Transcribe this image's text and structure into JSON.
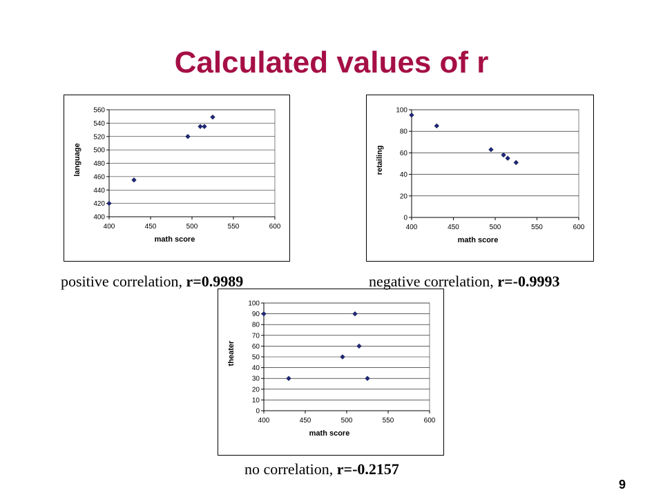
{
  "title": "Calculated values of r",
  "page_number": "9",
  "captions": [
    {
      "text": "positive correlation, ",
      "r": "r=0.9989"
    },
    {
      "text": "negative correlation, ",
      "r": "r=-0.9993"
    },
    {
      "text": "no correlation, ",
      "r": "r=-0.2157"
    }
  ],
  "colors": {
    "title": "#a50f45",
    "marker": "#1f2a80"
  },
  "chart_data": [
    {
      "type": "scatter",
      "xlabel": "math score",
      "ylabel": "language",
      "xlim": [
        400,
        600
      ],
      "ylim": [
        400,
        560
      ],
      "x_ticks": [
        "400",
        "450",
        "500",
        "550",
        "600"
      ],
      "y_ticks": [
        "400",
        "420",
        "440",
        "460",
        "480",
        "500",
        "520",
        "540",
        "560"
      ],
      "grid": "horizontal",
      "points": [
        {
          "x": 400,
          "y": 420
        },
        {
          "x": 430,
          "y": 455
        },
        {
          "x": 495,
          "y": 520
        },
        {
          "x": 510,
          "y": 535
        },
        {
          "x": 515,
          "y": 535
        },
        {
          "x": 525,
          "y": 549
        }
      ]
    },
    {
      "type": "scatter",
      "xlabel": "math score",
      "ylabel": "retailing",
      "xlim": [
        400,
        600
      ],
      "ylim": [
        0,
        100
      ],
      "x_ticks": [
        "400",
        "450",
        "500",
        "550",
        "600"
      ],
      "y_ticks": [
        "0",
        "20",
        "40",
        "60",
        "80",
        "100"
      ],
      "grid": "horizontal",
      "points": [
        {
          "x": 400,
          "y": 95
        },
        {
          "x": 430,
          "y": 85
        },
        {
          "x": 495,
          "y": 63
        },
        {
          "x": 510,
          "y": 58
        },
        {
          "x": 515,
          "y": 55
        },
        {
          "x": 525,
          "y": 51
        }
      ]
    },
    {
      "type": "scatter",
      "xlabel": "math score",
      "ylabel": "theater",
      "xlim": [
        400,
        600
      ],
      "ylim": [
        0,
        100
      ],
      "x_ticks": [
        "400",
        "450",
        "500",
        "550",
        "600"
      ],
      "y_ticks": [
        "0",
        "10",
        "20",
        "30",
        "40",
        "50",
        "60",
        "70",
        "80",
        "90",
        "100"
      ],
      "grid": "horizontal",
      "points": [
        {
          "x": 400,
          "y": 90
        },
        {
          "x": 430,
          "y": 30
        },
        {
          "x": 495,
          "y": 50
        },
        {
          "x": 510,
          "y": 90
        },
        {
          "x": 515,
          "y": 60
        },
        {
          "x": 525,
          "y": 30
        }
      ]
    }
  ]
}
